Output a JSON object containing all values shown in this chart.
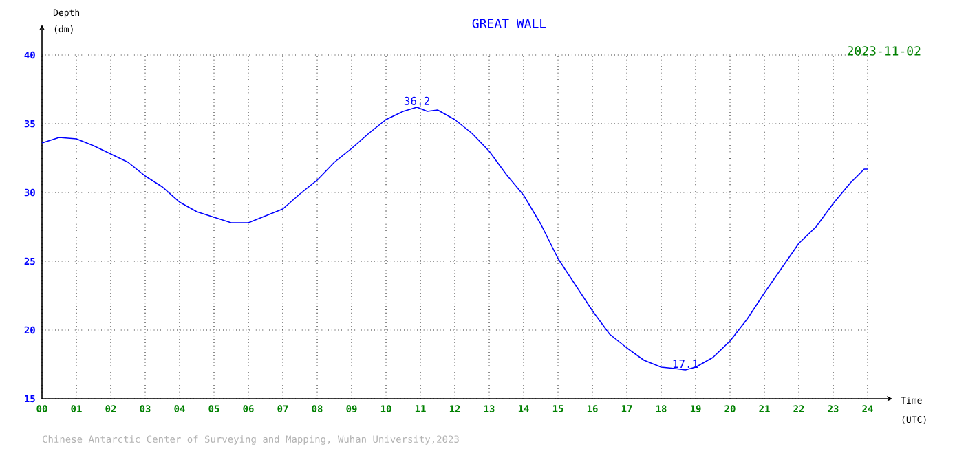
{
  "chart_data": {
    "type": "line",
    "title": "GREAT WALL",
    "subtitle": "2023-11-02",
    "xlabel": "Time (UTC)",
    "ylabel": "Depth (dm)",
    "xlim": [
      0,
      24
    ],
    "ylim": [
      15,
      40
    ],
    "xticks": [
      {
        "value": 0,
        "label": "00"
      },
      {
        "value": 1,
        "label": "01"
      },
      {
        "value": 2,
        "label": "02"
      },
      {
        "value": 3,
        "label": "03"
      },
      {
        "value": 4,
        "label": "04"
      },
      {
        "value": 5,
        "label": "05"
      },
      {
        "value": 6,
        "label": "06"
      },
      {
        "value": 7,
        "label": "07"
      },
      {
        "value": 8,
        "label": "08"
      },
      {
        "value": 9,
        "label": "09"
      },
      {
        "value": 10,
        "label": "10"
      },
      {
        "value": 11,
        "label": "11"
      },
      {
        "value": 12,
        "label": "12"
      },
      {
        "value": 13,
        "label": "13"
      },
      {
        "value": 14,
        "label": "14"
      },
      {
        "value": 15,
        "label": "15"
      },
      {
        "value": 16,
        "label": "16"
      },
      {
        "value": 17,
        "label": "17"
      },
      {
        "value": 18,
        "label": "18"
      },
      {
        "value": 19,
        "label": "19"
      },
      {
        "value": 20,
        "label": "20"
      },
      {
        "value": 21,
        "label": "21"
      },
      {
        "value": 22,
        "label": "22"
      },
      {
        "value": 23,
        "label": "23"
      },
      {
        "value": 24,
        "label": "24"
      }
    ],
    "yticks": [
      15,
      20,
      25,
      30,
      35,
      40
    ],
    "grid": true,
    "line_style": "solid",
    "series": [
      {
        "color": "#0000ff",
        "x": [
          0,
          0.5,
          1,
          1.5,
          2,
          2.5,
          3,
          3.5,
          4,
          4.5,
          5,
          5.5,
          6,
          6.5,
          7,
          7.5,
          8,
          8.5,
          9,
          9.5,
          10,
          10.5,
          10.9,
          11.2,
          11.5,
          12,
          12.5,
          13,
          13.5,
          14,
          14.5,
          15,
          15.5,
          16,
          16.5,
          17,
          17.5,
          18,
          18.4,
          18.7,
          19,
          19.5,
          20,
          20.5,
          21,
          21.5,
          22,
          22.5,
          23,
          23.5,
          23.9,
          24
        ],
        "values": [
          33.6,
          34.0,
          33.9,
          33.4,
          32.8,
          32.2,
          31.2,
          30.4,
          29.3,
          28.6,
          28.2,
          27.8,
          27.8,
          28.3,
          28.8,
          29.9,
          30.9,
          32.2,
          33.2,
          34.3,
          35.3,
          35.9,
          36.2,
          35.9,
          36.0,
          35.3,
          34.3,
          33.0,
          31.3,
          29.8,
          27.7,
          25.2,
          23.3,
          21.4,
          19.7,
          18.7,
          17.8,
          17.3,
          17.2,
          17.1,
          17.3,
          18.0,
          19.2,
          20.8,
          22.7,
          24.5,
          26.3,
          27.5,
          29.2,
          30.7,
          31.7,
          31.7
        ]
      }
    ],
    "annotations": [
      {
        "text": "36.2",
        "x": 10.9,
        "y": 36.2
      },
      {
        "text": "17.1",
        "x": 18.7,
        "y": 17.1
      },
      "Chinese Antarctic Center of Surveying and Mapping, Wuhan University,2023"
    ]
  }
}
